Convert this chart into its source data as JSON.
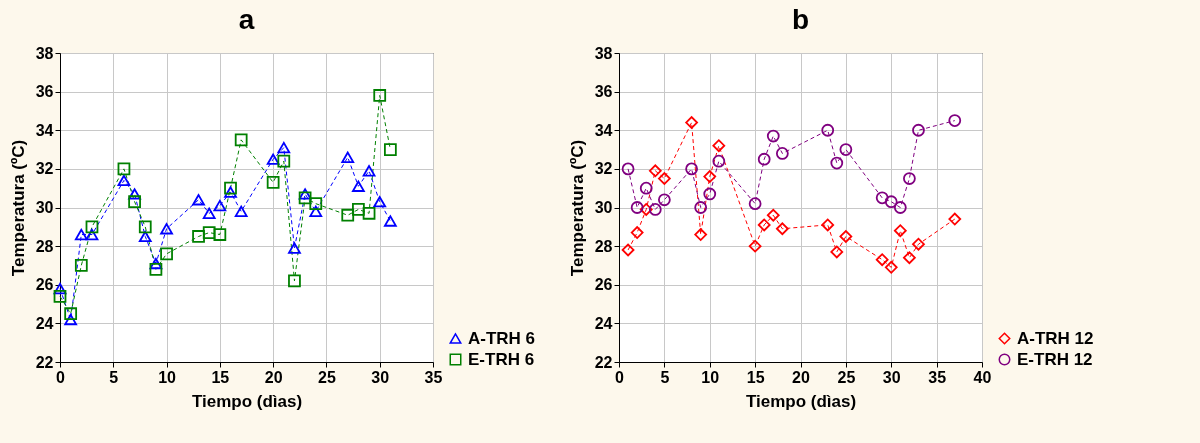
{
  "chart_data": [
    {
      "type": "line",
      "title": "a",
      "xlabel": "Tiempo (dìas)",
      "ylabel": "Temperatura (ºC)",
      "xlim": [
        0,
        35
      ],
      "xticks": [
        0,
        5,
        10,
        15,
        20,
        25,
        30,
        35
      ],
      "ylim": [
        22,
        38
      ],
      "yticks": [
        22,
        24,
        26,
        28,
        30,
        32,
        34,
        36,
        38
      ],
      "grid": true,
      "legend": "bottom right",
      "line_style": "dashed",
      "series": [
        {
          "name": "A-TRH 6",
          "color": "#0000ff",
          "marker": "triangle",
          "x": [
            0,
            1,
            2,
            3,
            6,
            7,
            8,
            9,
            10,
            13,
            14,
            15,
            16,
            17,
            20,
            21,
            22,
            23,
            24,
            27,
            28,
            29,
            30,
            31
          ],
          "values": [
            25.8,
            24.2,
            28.6,
            28.6,
            31.4,
            30.7,
            28.5,
            27.1,
            28.9,
            30.4,
            29.7,
            30.1,
            30.8,
            29.8,
            32.5,
            33.1,
            27.9,
            30.7,
            29.8,
            32.6,
            31.1,
            31.9,
            30.3,
            29.3
          ]
        },
        {
          "name": "E-TRH 6",
          "color": "#008000",
          "marker": "square",
          "x": [
            0,
            1,
            2,
            3,
            6,
            7,
            8,
            9,
            10,
            13,
            14,
            15,
            16,
            17,
            20,
            21,
            22,
            23,
            24,
            27,
            28,
            29,
            30,
            31
          ],
          "values": [
            25.4,
            24.5,
            27,
            29,
            32,
            30.3,
            29,
            26.8,
            27.6,
            28.5,
            28.7,
            28.6,
            31,
            33.5,
            31.3,
            32.4,
            26.2,
            30.5,
            30.2,
            29.6,
            29.9,
            29.7,
            35.8,
            33
          ]
        }
      ]
    },
    {
      "type": "line",
      "title": "b",
      "xlabel": "Tiempo (dìas)",
      "ylabel": "Temperatura (ºC)",
      "xlim": [
        0,
        40
      ],
      "xticks": [
        0,
        5,
        10,
        15,
        20,
        25,
        30,
        35,
        40
      ],
      "ylim": [
        22,
        38
      ],
      "yticks": [
        22,
        24,
        26,
        28,
        30,
        32,
        34,
        36,
        38
      ],
      "grid": true,
      "legend": "bottom right",
      "line_style": "dashed",
      "series": [
        {
          "name": "A-TRH 12",
          "color": "#ff0000",
          "marker": "diamond",
          "x": [
            1,
            2,
            3,
            4,
            5,
            8,
            9,
            10,
            11,
            15,
            16,
            17,
            18,
            23,
            24,
            25,
            29,
            30,
            31,
            32,
            33,
            37
          ],
          "values": [
            27.8,
            28.7,
            29.9,
            31.9,
            31.5,
            34.4,
            28.6,
            31.6,
            33.2,
            28,
            29.1,
            29.6,
            28.9,
            29.1,
            27.7,
            28.5,
            27.3,
            26.9,
            28.8,
            27.4,
            28.1,
            29.4
          ]
        },
        {
          "name": "E-TRH 12",
          "color": "#800080",
          "marker": "circle",
          "x": [
            1,
            2,
            3,
            4,
            5,
            8,
            9,
            10,
            11,
            15,
            16,
            17,
            18,
            23,
            24,
            25,
            29,
            30,
            31,
            32,
            33,
            37
          ],
          "values": [
            32,
            30,
            31,
            29.9,
            30.4,
            32,
            30,
            30.7,
            32.4,
            30.2,
            32.5,
            33.7,
            32.8,
            34,
            32.3,
            33,
            30.5,
            30.3,
            30,
            31.5,
            34,
            34.5
          ]
        }
      ]
    }
  ]
}
